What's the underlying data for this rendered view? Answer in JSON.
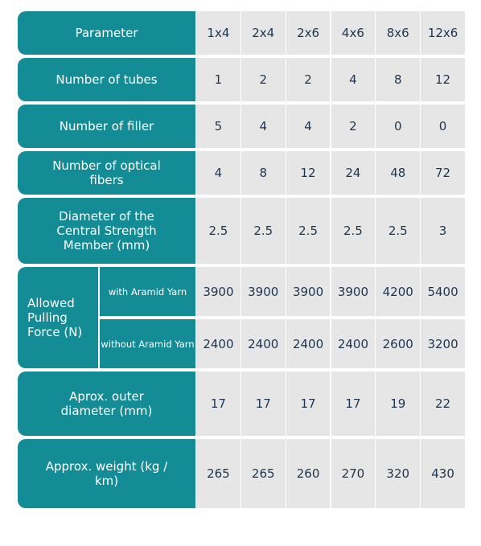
{
  "table": {
    "header": {
      "label": "Parameter",
      "columns": [
        "1x4",
        "2x4",
        "2x6",
        "4x6",
        "8x6",
        "12x6"
      ]
    },
    "rows": [
      {
        "label": "Number of tubes",
        "values": [
          1,
          2,
          2,
          4,
          8,
          12
        ]
      },
      {
        "label": "Number of filler",
        "values": [
          5,
          4,
          4,
          2,
          0,
          0
        ]
      },
      {
        "label": "Number of optical fibers",
        "values": [
          4,
          8,
          12,
          24,
          48,
          72
        ]
      },
      {
        "label": "Diameter of the Central Strength Member (mm)",
        "values": [
          2.5,
          2.5,
          2.5,
          2.5,
          2.5,
          3
        ]
      },
      {
        "label": "Allowed Pulling Force (N)",
        "subrows": [
          {
            "label": "with Aramid Yarn",
            "values": [
              3900,
              3900,
              3900,
              3900,
              4200,
              5400
            ]
          },
          {
            "label": "without Aramid Yarn",
            "values": [
              2400,
              2400,
              2400,
              2400,
              2600,
              3200
            ]
          }
        ]
      },
      {
        "label": "Aprox. outer diameter (mm)",
        "values": [
          17,
          17,
          17,
          17,
          19,
          22
        ]
      },
      {
        "label": "Approx. weight (kg / km)",
        "values": [
          265,
          265,
          260,
          270,
          320,
          430
        ]
      }
    ]
  }
}
